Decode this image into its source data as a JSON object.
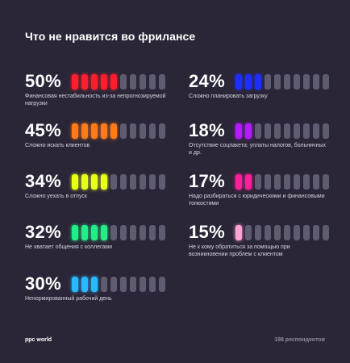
{
  "title": "Что не нравится во фрилансе",
  "footer": {
    "brand": "ppc world",
    "respondents": "198 респондентов"
  },
  "chart_data": {
    "type": "bar",
    "title": "Что не нравится во фрилансе",
    "segments_total": 10,
    "inactive_color": "#5f5b70",
    "items": [
      {
        "value_label": "50%",
        "value": 50,
        "filled": 5,
        "color": "#ff1e2d",
        "label": "Финансовая нестабильность из-за непрогнозируемой нагрузки"
      },
      {
        "value_label": "45%",
        "value": 45,
        "filled": 5,
        "color": "#ff7a18",
        "label": "Сложно искать клиентов"
      },
      {
        "value_label": "34%",
        "value": 34,
        "filled": 4,
        "color": "#e8ff1a",
        "label": "Сложно уехать в отпуск"
      },
      {
        "value_label": "32%",
        "value": 32,
        "filled": 4,
        "color": "#22ee88",
        "label": "Не хватает общения с коллегами"
      },
      {
        "value_label": "30%",
        "value": 30,
        "filled": 3,
        "color": "#2ab8ff",
        "label": "Ненормированный рабочий день"
      },
      {
        "value_label": "24%",
        "value": 24,
        "filled": 3,
        "color": "#1f2dff",
        "label": "Сложно планировать загрузку"
      },
      {
        "value_label": "18%",
        "value": 18,
        "filled": 2,
        "color": "#b41cff",
        "label": "Отсутствие соцпакета: уплаты налогов, больничных и др."
      },
      {
        "value_label": "17%",
        "value": 17,
        "filled": 2,
        "color": "#ff1f9a",
        "label": "Надо разбираться с юридическими и финансовыми тонкостями"
      },
      {
        "value_label": "15%",
        "value": 15,
        "filled": 1,
        "color": "#ffa3d6",
        "label": "Не к кому обратиться за помощью при возникновении проблем с клиентом"
      }
    ]
  }
}
